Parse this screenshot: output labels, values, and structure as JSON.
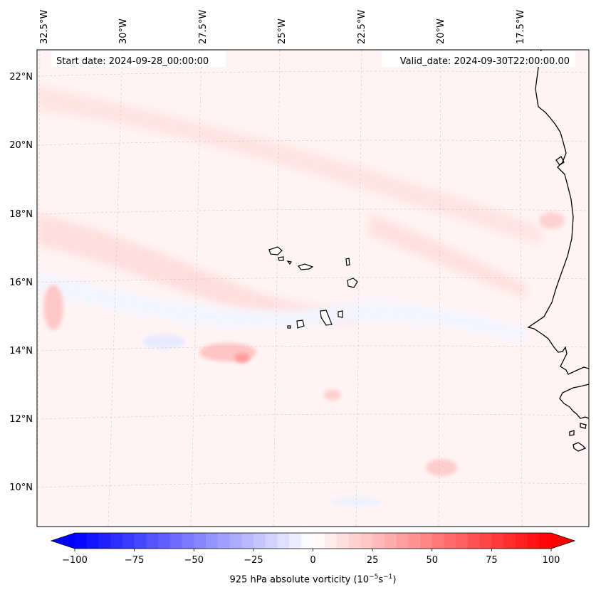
{
  "annotations": {
    "start_date": "Start date: 2024-09-28_00:00:00",
    "valid_date": "Valid_date: 2024-09-30T22:00:00.00"
  },
  "lon_labels": [
    "32.5°W",
    "30°W",
    "27.5°W",
    "25°W",
    "22.5°W",
    "20°W",
    "17.5°W"
  ],
  "lat_labels": [
    "22°N",
    "20°N",
    "18°N",
    "16°N",
    "14°N",
    "12°N",
    "10°N"
  ],
  "colorbar": {
    "cmap": "bwr",
    "colors": {
      "min": "#0000ff",
      "mid": "#ffffff",
      "max": "#ff0000"
    },
    "ticks": [
      "−100",
      "−75",
      "−50",
      "−25",
      "0",
      "25",
      "50",
      "75",
      "100"
    ],
    "label_prefix": "925 hPa absolute vorticity (10",
    "label_exp1": "−5",
    "label_mid": "s",
    "label_exp2": "−1",
    "label_suffix": ")"
  },
  "field_features": [
    "positive vorticity band NW",
    "positive vorticity band central",
    "vorticity max near 14°N 27°W",
    "vorticity max near 15°N 32°W",
    "vorticity max near 10.5°N 20°W",
    "negative vorticity band near 14.5°N"
  ],
  "land": [
    "Cape Verde islands",
    "West African coast"
  ]
}
